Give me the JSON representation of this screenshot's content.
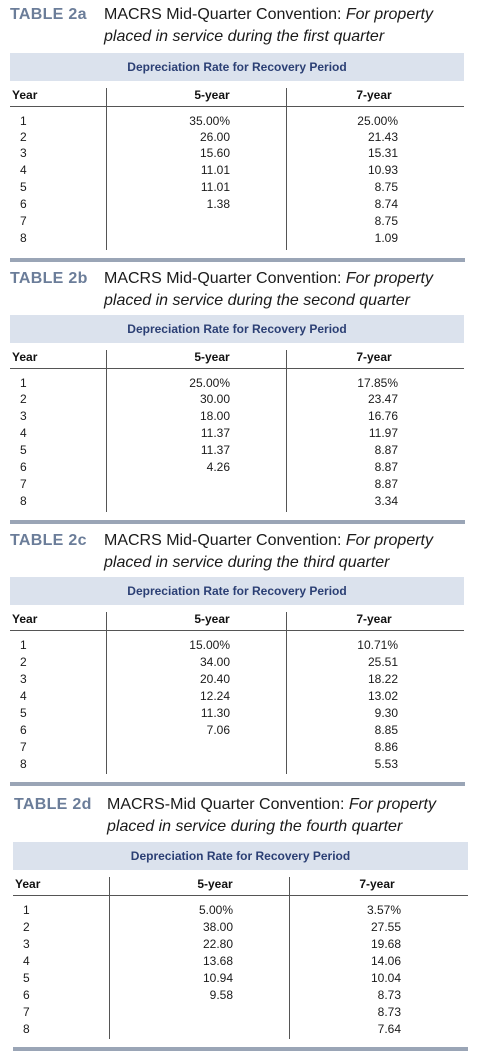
{
  "tables": [
    {
      "label": "TABLE 2a",
      "title_lead": "MACRS Mid-Quarter Convention: ",
      "title_italic1": "For property",
      "title_line2": "placed in service during the first quarter",
      "band": "Depreciation Rate for Recovery Period",
      "headers": {
        "year": "Year",
        "c5": "5-year",
        "c7": "7-year"
      },
      "rows": [
        {
          "year": "1",
          "c5": "35.00%",
          "c7": "25.00%"
        },
        {
          "year": "2",
          "c5": "26.00",
          "c7": "21.43"
        },
        {
          "year": "3",
          "c5": "15.60",
          "c7": "15.31"
        },
        {
          "year": "4",
          "c5": "11.01",
          "c7": "10.93"
        },
        {
          "year": "5",
          "c5": "11.01",
          "c7": "8.75"
        },
        {
          "year": "6",
          "c5": "1.38",
          "c7": "8.74"
        },
        {
          "year": "7",
          "c5": "",
          "c7": "8.75"
        },
        {
          "year": "8",
          "c5": "",
          "c7": "1.09"
        }
      ]
    },
    {
      "label": "TABLE 2b",
      "title_lead": "MACRS Mid-Quarter Convention: ",
      "title_italic1": "For property",
      "title_line2": "placed in service during the second quarter",
      "band": "Depreciation Rate for Recovery Period",
      "headers": {
        "year": "Year",
        "c5": "5-year",
        "c7": "7-year"
      },
      "rows": [
        {
          "year": "1",
          "c5": "25.00%",
          "c7": "17.85%"
        },
        {
          "year": "2",
          "c5": "30.00",
          "c7": "23.47"
        },
        {
          "year": "3",
          "c5": "18.00",
          "c7": "16.76"
        },
        {
          "year": "4",
          "c5": "11.37",
          "c7": "11.97"
        },
        {
          "year": "5",
          "c5": "11.37",
          "c7": "8.87"
        },
        {
          "year": "6",
          "c5": "4.26",
          "c7": "8.87"
        },
        {
          "year": "7",
          "c5": "",
          "c7": "8.87"
        },
        {
          "year": "8",
          "c5": "",
          "c7": "3.34"
        }
      ]
    },
    {
      "label": "TABLE 2c",
      "title_lead": "MACRS Mid-Quarter Convention: ",
      "title_italic1": "For property",
      "title_line2": "placed in service during the third quarter",
      "band": "Depreciation Rate for Recovery Period",
      "headers": {
        "year": "Year",
        "c5": "5-year",
        "c7": "7-year"
      },
      "rows": [
        {
          "year": "1",
          "c5": "15.00%",
          "c7": "10.71%"
        },
        {
          "year": "2",
          "c5": "34.00",
          "c7": "25.51"
        },
        {
          "year": "3",
          "c5": "20.40",
          "c7": "18.22"
        },
        {
          "year": "4",
          "c5": "12.24",
          "c7": "13.02"
        },
        {
          "year": "5",
          "c5": "11.30",
          "c7": "9.30"
        },
        {
          "year": "6",
          "c5": "7.06",
          "c7": "8.85"
        },
        {
          "year": "7",
          "c5": "",
          "c7": "8.86"
        },
        {
          "year": "8",
          "c5": "",
          "c7": "5.53"
        }
      ]
    },
    {
      "label": "TABLE 2d",
      "title_lead": "MACRS-Mid Quarter Convention: ",
      "title_italic1": "For property",
      "title_line2": "placed in service during the fourth quarter",
      "band": "Depreciation Rate for Recovery Period",
      "headers": {
        "year": "Year",
        "c5": "5-year",
        "c7": "7-year"
      },
      "rows": [
        {
          "year": "1",
          "c5": "5.00%",
          "c7": "3.57%"
        },
        {
          "year": "2",
          "c5": "38.00",
          "c7": "27.55"
        },
        {
          "year": "3",
          "c5": "22.80",
          "c7": "19.68"
        },
        {
          "year": "4",
          "c5": "13.68",
          "c7": "14.06"
        },
        {
          "year": "5",
          "c5": "10.94",
          "c7": "10.04"
        },
        {
          "year": "6",
          "c5": "9.58",
          "c7": "8.73"
        },
        {
          "year": "7",
          "c5": "",
          "c7": "8.73"
        },
        {
          "year": "8",
          "c5": "",
          "c7": "7.64"
        }
      ]
    }
  ]
}
